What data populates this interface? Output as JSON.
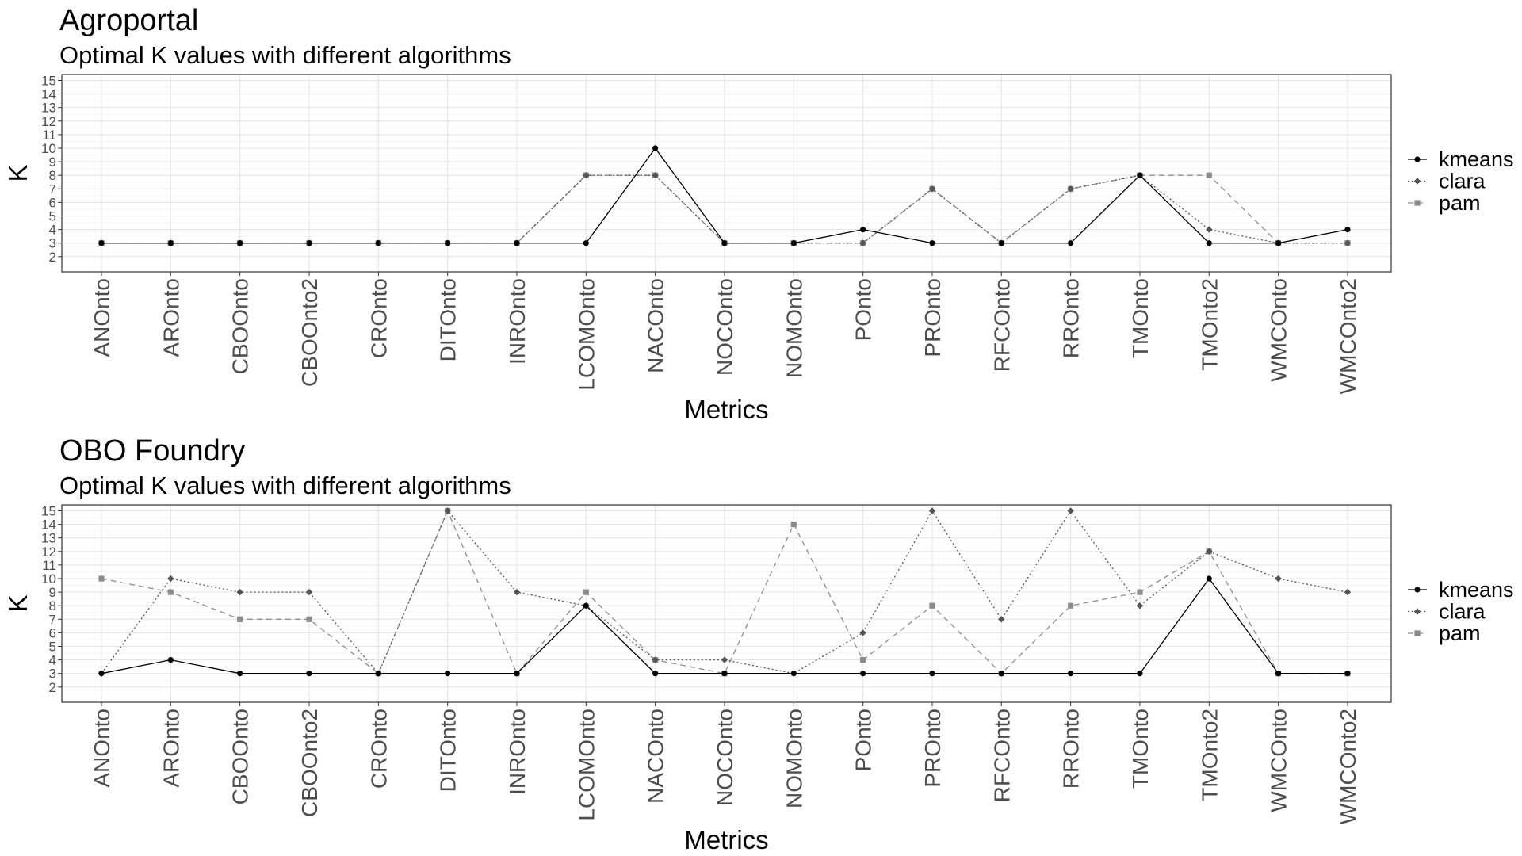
{
  "chart_data": [
    {
      "type": "line",
      "title": "Agroportal",
      "subtitle": "Optimal K values with different algorithms",
      "xlabel": "Metrics",
      "ylabel": "K",
      "ylim": [
        2,
        15
      ],
      "yticks": [
        "2",
        "3",
        "4",
        "5",
        "6",
        "7",
        "8",
        "9",
        "10",
        "11",
        "12",
        "13",
        "14",
        "15"
      ],
      "grid": true,
      "legend": "right",
      "categories": [
        "ANOnto",
        "AROnto",
        "CBOOnto",
        "CBOOnto2",
        "CROnto",
        "DITOnto",
        "INROnto",
        "LCOMOnto",
        "NACOnto",
        "NOCOnto",
        "NOMOnto",
        "POnto",
        "PROnto",
        "RFCOnto",
        "RROnto",
        "TMOnto",
        "TMOnto2",
        "WMCOnto",
        "WMCOnto2"
      ],
      "series": [
        {
          "name": "kmeans",
          "color": "#000000",
          "linestyle": "solid",
          "marker": "circle",
          "values": [
            3,
            3,
            3,
            3,
            3,
            3,
            3,
            3,
            10,
            3,
            3,
            4,
            3,
            3,
            3,
            8,
            3,
            3,
            4
          ]
        },
        {
          "name": "clara",
          "color": "#555555",
          "linestyle": "dotted",
          "marker": "diamond",
          "values": [
            3,
            3,
            3,
            3,
            3,
            3,
            3,
            8,
            8,
            3,
            3,
            3,
            7,
            3,
            7,
            8,
            4,
            3,
            3
          ]
        },
        {
          "name": "pam",
          "color": "#8c8c8c",
          "linestyle": "dashed",
          "marker": "square",
          "values": [
            3,
            3,
            3,
            3,
            3,
            3,
            3,
            8,
            8,
            3,
            3,
            3,
            7,
            3,
            7,
            8,
            8,
            3,
            3
          ]
        }
      ]
    },
    {
      "type": "line",
      "title": "OBO Foundry",
      "subtitle": "Optimal K values with different algorithms",
      "xlabel": "Metrics",
      "ylabel": "K",
      "ylim": [
        2,
        15
      ],
      "yticks": [
        "2",
        "3",
        "4",
        "5",
        "6",
        "7",
        "8",
        "9",
        "10",
        "11",
        "12",
        "13",
        "14",
        "15"
      ],
      "grid": true,
      "legend": "right",
      "categories": [
        "ANOnto",
        "AROnto",
        "CBOOnto",
        "CBOOnto2",
        "CROnto",
        "DITOnto",
        "INROnto",
        "LCOMOnto",
        "NACOnto",
        "NOCOnto",
        "NOMOnto",
        "POnto",
        "PROnto",
        "RFCOnto",
        "RROnto",
        "TMOnto",
        "TMOnto2",
        "WMCOnto",
        "WMCOnto2"
      ],
      "series": [
        {
          "name": "kmeans",
          "color": "#000000",
          "linestyle": "solid",
          "marker": "circle",
          "values": [
            3,
            4,
            3,
            3,
            3,
            3,
            3,
            8,
            3,
            3,
            3,
            3,
            3,
            3,
            3,
            3,
            10,
            3,
            3
          ]
        },
        {
          "name": "clara",
          "color": "#555555",
          "linestyle": "dotted",
          "marker": "diamond",
          "values": [
            3,
            10,
            9,
            9,
            3,
            15,
            9,
            8,
            4,
            4,
            3,
            6,
            15,
            7,
            15,
            8,
            12,
            10,
            9
          ]
        },
        {
          "name": "pam",
          "color": "#8c8c8c",
          "linestyle": "dashed",
          "marker": "square",
          "values": [
            10,
            9,
            7,
            7,
            3,
            15,
            3,
            9,
            4,
            3,
            14,
            4,
            8,
            3,
            8,
            9,
            12,
            3,
            3
          ]
        }
      ]
    }
  ]
}
